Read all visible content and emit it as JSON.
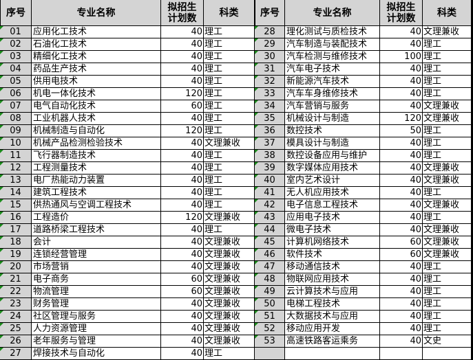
{
  "headers": {
    "seq": "序号",
    "name": "专业名称",
    "plan": "拟招生\n计划数",
    "category": "科类"
  },
  "left": [
    {
      "seq": "01",
      "name": "应用化工技术",
      "plan": "40",
      "category": "理工"
    },
    {
      "seq": "02",
      "name": "石油化工技术",
      "plan": "40",
      "category": "理工"
    },
    {
      "seq": "03",
      "name": "精细化工技术",
      "plan": "40",
      "category": "理工"
    },
    {
      "seq": "04",
      "name": "药品生产技术",
      "plan": "40",
      "category": "理工"
    },
    {
      "seq": "05",
      "name": "供用电技术",
      "plan": "40",
      "category": "理工"
    },
    {
      "seq": "06",
      "name": "机电一体化技术",
      "plan": "120",
      "category": "理工"
    },
    {
      "seq": "07",
      "name": "电气自动化技术",
      "plan": "60",
      "category": "理工"
    },
    {
      "seq": "08",
      "name": "工业机器人技术",
      "plan": "40",
      "category": "理工"
    },
    {
      "seq": "09",
      "name": "机械制造与自动化",
      "plan": "120",
      "category": "理工"
    },
    {
      "seq": "10",
      "name": "机械产品检测检验技术",
      "plan": "40",
      "category": "文理兼收"
    },
    {
      "seq": "11",
      "name": "飞行器制造技术",
      "plan": "40",
      "category": "理工"
    },
    {
      "seq": "12",
      "name": "工程测量技术",
      "plan": "40",
      "category": "理工"
    },
    {
      "seq": "13",
      "name": "电厂热能动力装置",
      "plan": "40",
      "category": "理工"
    },
    {
      "seq": "14",
      "name": "建筑工程技术",
      "plan": "40",
      "category": "理工"
    },
    {
      "seq": "15",
      "name": "供热通风与空调工程技术",
      "plan": "40",
      "category": "理工"
    },
    {
      "seq": "16",
      "name": "工程造价",
      "plan": "120",
      "category": "文理兼收"
    },
    {
      "seq": "17",
      "name": "道路桥梁工程技术",
      "plan": "40",
      "category": "理工"
    },
    {
      "seq": "18",
      "name": "会计",
      "plan": "40",
      "category": "文理兼收"
    },
    {
      "seq": "19",
      "name": "连锁经营管理",
      "plan": "40",
      "category": "文理兼收"
    },
    {
      "seq": "20",
      "name": "市场营销",
      "plan": "40",
      "category": "文理兼收"
    },
    {
      "seq": "21",
      "name": "电子商务",
      "plan": "60",
      "category": "文理兼收"
    },
    {
      "seq": "22",
      "name": "物流管理",
      "plan": "60",
      "category": "文理兼收"
    },
    {
      "seq": "23",
      "name": "财务管理",
      "plan": "40",
      "category": "文理兼收"
    },
    {
      "seq": "24",
      "name": "社区管理与服务",
      "plan": "40",
      "category": "文理兼收"
    },
    {
      "seq": "25",
      "name": "人力资源管理",
      "plan": "40",
      "category": "文理兼收"
    },
    {
      "seq": "26",
      "name": "老年服务与管理",
      "plan": "40",
      "category": "文理兼收"
    },
    {
      "seq": "27",
      "name": "焊接技术与自动化",
      "plan": "40",
      "category": "理工"
    }
  ],
  "right": [
    {
      "seq": "28",
      "name": "理化测试与质检技术",
      "plan": "40",
      "category": "文理兼收"
    },
    {
      "seq": "29",
      "name": "汽车制造与装配技术",
      "plan": "40",
      "category": "理工"
    },
    {
      "seq": "30",
      "name": "汽车检测与维修技术",
      "plan": "100",
      "category": "理工"
    },
    {
      "seq": "31",
      "name": "汽车电子技术",
      "plan": "40",
      "category": "理工"
    },
    {
      "seq": "32",
      "name": "新能源汽车技术",
      "plan": "40",
      "category": "理工"
    },
    {
      "seq": "33",
      "name": "汽车车身维修技术",
      "plan": "40",
      "category": "理工"
    },
    {
      "seq": "34",
      "name": "汽车营销与服务",
      "plan": "40",
      "category": "文理兼收"
    },
    {
      "seq": "35",
      "name": "机械设计与制造",
      "plan": "120",
      "category": "文理兼收"
    },
    {
      "seq": "36",
      "name": "数控技术",
      "plan": "50",
      "category": "理工"
    },
    {
      "seq": "37",
      "name": "模具设计与制造",
      "plan": "40",
      "category": "理工"
    },
    {
      "seq": "38",
      "name": "数控设备应用与维护",
      "plan": "40",
      "category": "理工"
    },
    {
      "seq": "39",
      "name": "数字媒体应用技术",
      "plan": "40",
      "category": "文理兼收"
    },
    {
      "seq": "40",
      "name": "室内艺术设计",
      "plan": "40",
      "category": "文理兼收"
    },
    {
      "seq": "41",
      "name": "无人机应用技术",
      "plan": "40",
      "category": "理工"
    },
    {
      "seq": "42",
      "name": "电子信息工程技术",
      "plan": "40",
      "category": "文理兼收"
    },
    {
      "seq": "43",
      "name": "应用电子技术",
      "plan": "40",
      "category": "理工"
    },
    {
      "seq": "44",
      "name": "微电子技术",
      "plan": "40",
      "category": "文理兼收"
    },
    {
      "seq": "45",
      "name": "计算机网络技术",
      "plan": "60",
      "category": "文理兼收"
    },
    {
      "seq": "46",
      "name": "软件技术",
      "plan": "60",
      "category": "文理兼收"
    },
    {
      "seq": "47",
      "name": "移动通信技术",
      "plan": "40",
      "category": "理工"
    },
    {
      "seq": "48",
      "name": "物联网应用技术",
      "plan": "40",
      "category": "理工"
    },
    {
      "seq": "49",
      "name": "云计算技术与应用",
      "plan": "40",
      "category": "理工"
    },
    {
      "seq": "50",
      "name": "电梯工程技术",
      "plan": "40",
      "category": "理工"
    },
    {
      "seq": "51",
      "name": "大数据技术与应用",
      "plan": "40",
      "category": "理工"
    },
    {
      "seq": "52",
      "name": "移动应用开发",
      "plan": "40",
      "category": "理工"
    },
    {
      "seq": "53",
      "name": "高速铁路客运乘务",
      "plan": "40",
      "category": "文史"
    },
    {
      "seq": "",
      "name": "",
      "plan": "",
      "category": ""
    }
  ]
}
